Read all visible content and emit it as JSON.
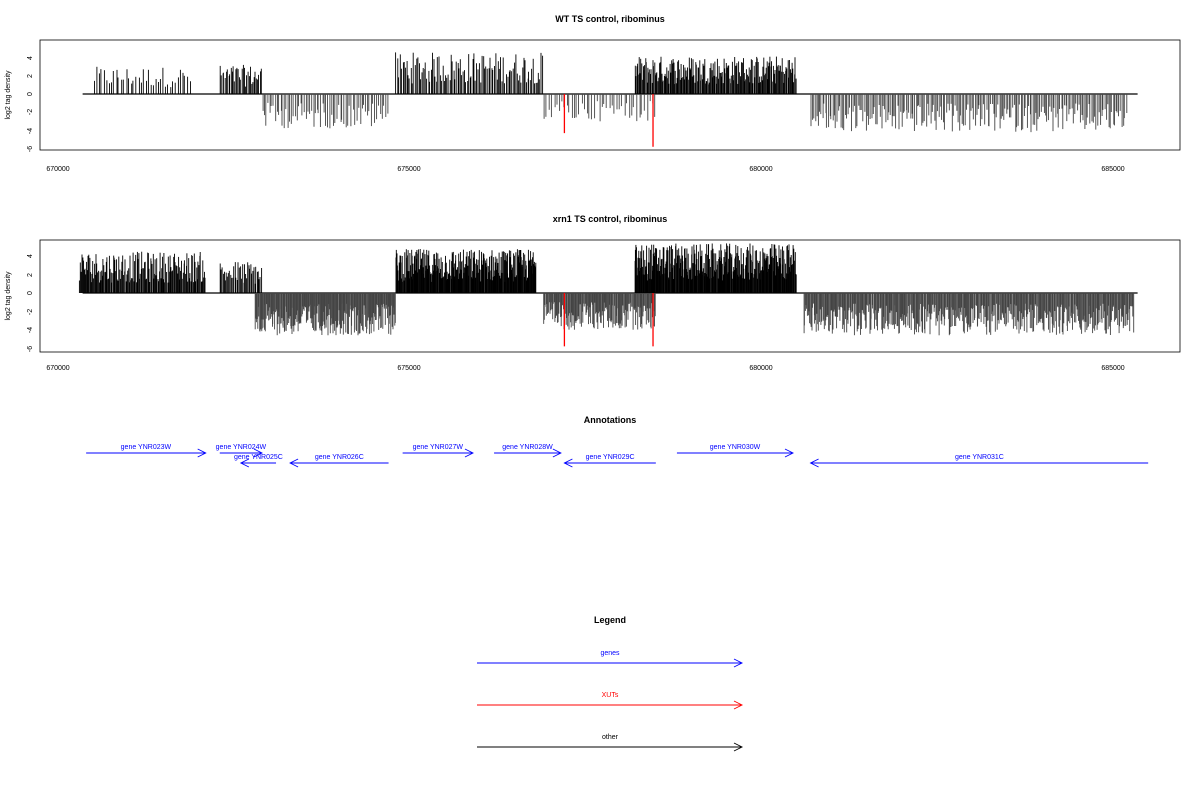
{
  "colors": {
    "genes": "#0000ff",
    "xuts": "#ff0000",
    "other": "#000000",
    "positive": "#000000",
    "negative": "#444444"
  },
  "ylabel": "log2 tag density",
  "chart_data": [
    {
      "type": "bar",
      "title": "WT TS control, ribominus",
      "ylabel": "log2 tag density",
      "xlim": [
        670000,
        686000
      ],
      "ylim": [
        -6,
        6
      ],
      "x_ticks": [
        "670000",
        "675000",
        "680000",
        "685000"
      ],
      "y_ticks": [
        "-6",
        "-4",
        "-2",
        "0",
        "2",
        "4"
      ],
      "tracks": [
        {
          "range": [
            670500,
            671900
          ],
          "sign": 1,
          "count": 40,
          "max": 3.0
        },
        {
          "range": [
            672300,
            672900
          ],
          "sign": 1,
          "count": 35,
          "max": 3.2
        },
        {
          "range": [
            672900,
            674700
          ],
          "sign": -1,
          "count": 70,
          "max": 3.8
        },
        {
          "range": [
            674800,
            676900
          ],
          "sign": 1,
          "count": 110,
          "max": 4.6
        },
        {
          "range": [
            676900,
            678500
          ],
          "sign": -1,
          "count": 45,
          "max": 3.0
        },
        {
          "range": [
            678200,
            680500
          ],
          "sign": 1,
          "count": 200,
          "max": 4.2
        },
        {
          "range": [
            680700,
            685200
          ],
          "sign": -1,
          "count": 220,
          "max": 4.2
        }
      ],
      "xut_marks": [
        {
          "x": 677200,
          "y": -4.3
        },
        {
          "x": 678460,
          "y": -5.8
        }
      ]
    },
    {
      "type": "bar",
      "title": "xrn1 TS control, ribominus",
      "ylabel": "log2 tag density",
      "xlim": [
        670000,
        686000
      ],
      "ylim": [
        -6,
        6
      ],
      "x_ticks": [
        "670000",
        "675000",
        "680000",
        "685000"
      ],
      "y_ticks": [
        "-6",
        "-4",
        "-2",
        "0",
        "2",
        "4"
      ],
      "tracks": [
        {
          "range": [
            670300,
            672100
          ],
          "sign": 1,
          "count": 160,
          "max": 4.5
        },
        {
          "range": [
            672300,
            672900
          ],
          "sign": 1,
          "count": 40,
          "max": 3.5
        },
        {
          "range": [
            672800,
            674800
          ],
          "sign": -1,
          "count": 230,
          "max": 4.6
        },
        {
          "range": [
            674800,
            676800
          ],
          "sign": 1,
          "count": 260,
          "max": 4.8
        },
        {
          "range": [
            676900,
            678500
          ],
          "sign": -1,
          "count": 160,
          "max": 4.0
        },
        {
          "range": [
            678200,
            680500
          ],
          "sign": 1,
          "count": 300,
          "max": 5.4
        },
        {
          "range": [
            680600,
            685300
          ],
          "sign": -1,
          "count": 450,
          "max": 4.6
        }
      ],
      "xut_marks": [
        {
          "x": 677200,
          "y": -5.8
        },
        {
          "x": 678460,
          "y": -5.8
        }
      ]
    }
  ],
  "annotations": {
    "title": "Annotations",
    "genes": [
      {
        "label": "gene YNR023W",
        "start": 670400,
        "end": 672100,
        "row": 0,
        "strand": "+"
      },
      {
        "label": "gene YNR024W",
        "start": 672300,
        "end": 672900,
        "row": 0,
        "strand": "+"
      },
      {
        "label": "gene YNR025C",
        "start": 672600,
        "end": 673100,
        "row": 1,
        "strand": "-"
      },
      {
        "label": "gene YNR026C",
        "start": 673300,
        "end": 674700,
        "row": 1,
        "strand": "-"
      },
      {
        "label": "gene YNR027W",
        "start": 674900,
        "end": 675900,
        "row": 0,
        "strand": "+"
      },
      {
        "label": "gene YNR028W",
        "start": 676200,
        "end": 677150,
        "row": 0,
        "strand": "+"
      },
      {
        "label": "gene YNR029C",
        "start": 677200,
        "end": 678500,
        "row": 1,
        "strand": "-"
      },
      {
        "label": "gene YNR030W",
        "start": 678800,
        "end": 680450,
        "row": 0,
        "strand": "+"
      },
      {
        "label": "gene YNR031C",
        "start": 680700,
        "end": 685500,
        "row": 1,
        "strand": "-"
      }
    ]
  },
  "legend": {
    "title": "Legend",
    "items": [
      {
        "label": "genes",
        "color": "#0000ff"
      },
      {
        "label": "XUTs",
        "color": "#ff0000"
      },
      {
        "label": "other",
        "color": "#000000"
      }
    ]
  }
}
